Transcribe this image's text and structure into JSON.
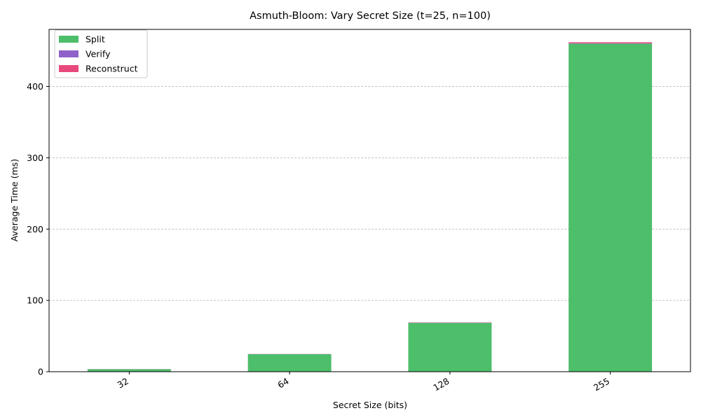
{
  "chart_data": {
    "type": "bar",
    "stacked": true,
    "title": "Asmuth-Bloom: Vary Secret Size (t=25, n=100)",
    "xlabel": "Secret Size (bits)",
    "ylabel": "Average Time (ms)",
    "categories": [
      "32",
      "64",
      "128",
      "255"
    ],
    "series": [
      {
        "name": "Split",
        "color": "#4dbe6a",
        "values": [
          3.5,
          24.5,
          68.5,
          460
        ]
      },
      {
        "name": "Verify",
        "color": "#8e62c9",
        "values": [
          0.05,
          0.1,
          0.2,
          0.5
        ]
      },
      {
        "name": "Reconstruct",
        "color": "#e8497b",
        "values": [
          0.1,
          0.2,
          0.4,
          1.5
        ]
      }
    ],
    "ylim": [
      0,
      480
    ],
    "yticks": [
      0,
      100,
      200,
      300,
      400
    ],
    "grid": "y-dashed",
    "legend": "top-left"
  }
}
